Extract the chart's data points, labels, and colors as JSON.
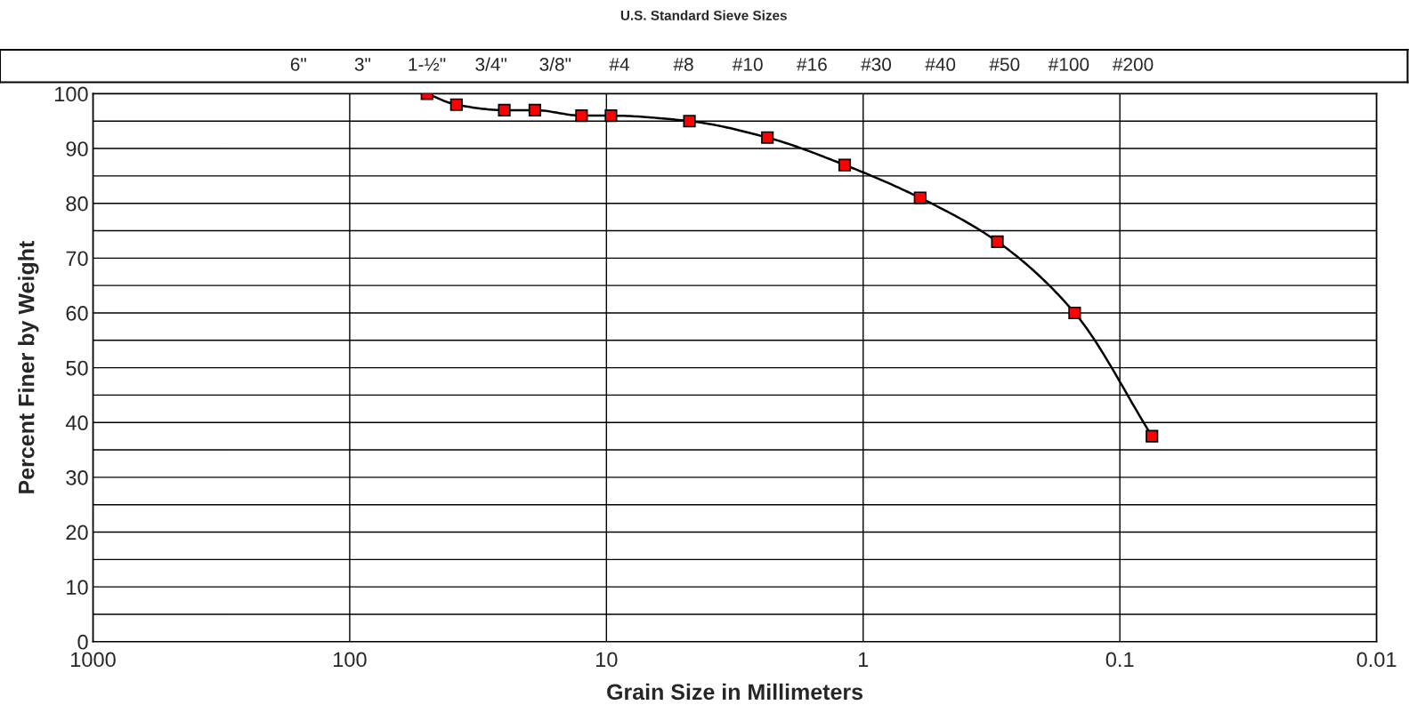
{
  "chart_data": [
    {
      "type": "other",
      "title": "U.S. Standard Sieve Sizes",
      "annotations": [
        "6\"",
        "3\"",
        "1-½\"",
        "3/4\"",
        "3/8\"",
        "#4",
        "#8",
        "#10",
        "#16",
        "#30",
        "#40",
        "#50",
        "#100",
        "#200"
      ]
    },
    {
      "type": "line",
      "xlabel": "Grain Size in Millimeters",
      "ylabel": "Percent Finer by Weight",
      "log": "x",
      "xlim": [
        1000,
        0.01
      ],
      "xticks": [
        1000,
        100,
        10,
        1,
        0.1,
        0.01
      ],
      "ylim": [
        0,
        100
      ],
      "yticks": [
        0,
        {
          "value": 5,
          "label": null
        },
        10,
        {
          "value": 15,
          "label": null
        },
        20,
        {
          "value": 25,
          "label": null
        },
        30,
        {
          "value": 35,
          "label": null
        },
        40,
        {
          "value": 45,
          "label": null
        },
        50,
        {
          "value": 55,
          "label": null
        },
        60,
        {
          "value": 65,
          "label": null
        },
        70,
        {
          "value": 75,
          "label": null
        },
        80,
        {
          "value": 85,
          "label": null
        },
        90,
        {
          "value": 95,
          "label": null
        },
        100
      ],
      "grid": true,
      "marker": "square",
      "line_style": "solid",
      "series": [
        {
          "color": "#ff0000",
          "x": [
            50,
            38.4,
            25,
            19,
            12.5,
            9.6,
            4.75,
            2.36,
            1.18,
            0.6,
            0.3,
            0.15,
            0.075
          ],
          "values": [
            100,
            98,
            97,
            97,
            96,
            96,
            95,
            92,
            87,
            81,
            73,
            60,
            37.5
          ]
        }
      ]
    }
  ]
}
